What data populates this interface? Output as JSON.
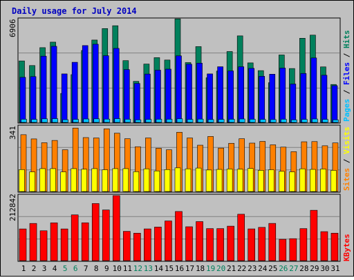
{
  "chart_data": {
    "type": "bar",
    "title": "Daily usage for July 2014",
    "days": [
      "1",
      "2",
      "3",
      "4",
      "5",
      "6",
      "7",
      "8",
      "9",
      "10",
      "11",
      "12",
      "13",
      "14",
      "15",
      "16",
      "17",
      "18",
      "19",
      "20",
      "21",
      "22",
      "23",
      "24",
      "25",
      "26",
      "27",
      "28",
      "29",
      "30",
      "31"
    ],
    "weekend_days": [
      "5",
      "6",
      "12",
      "13",
      "19",
      "20",
      "26",
      "27"
    ],
    "panels": {
      "top": {
        "ymax_label": "6906",
        "ymax": 6906,
        "labels": [
          "Pages",
          "Files",
          "Hits"
        ],
        "series": [
          {
            "name": "Hits",
            "color": "#00805c",
            "values": [
              4120,
              3810,
              5010,
              5380,
              1940,
              3200,
              4820,
              5520,
              6290,
              6480,
              4140,
              2750,
              3910,
              4340,
              4180,
              6940,
              4010,
              5080,
              2990,
              3440,
              4750,
              5800,
              3990,
              3470,
              2660,
              4520,
              3610,
              5640,
              5850,
              3720,
              2540
            ]
          },
          {
            "name": "Files",
            "color": "#0000ff",
            "values": [
              3020,
              3070,
              4440,
              5100,
              3250,
              4030,
              5150,
              5240,
              4470,
              4960,
              3540,
              2610,
              3240,
              3500,
              3570,
              4460,
              3900,
              3970,
              3250,
              3730,
              3450,
              3730,
              3620,
              3090,
              3230,
              3640,
              2570,
              3280,
              4320,
              3160,
              2460
            ]
          },
          {
            "name": "Pages",
            "color": "#00c0ff",
            "values": [
              210,
              200,
              240,
              250,
              180,
              200,
              230,
              240,
              220,
              250,
              210,
              170,
              200,
              210,
              210,
              240,
              200,
              220,
              190,
              200,
              210,
              230,
              210,
              200,
              190,
              210,
              170,
              200,
              230,
              200,
              170
            ]
          }
        ]
      },
      "middle": {
        "ymax_label": "341",
        "ymax": 341,
        "labels": [
          "Sites",
          "Visits"
        ],
        "series": [
          {
            "name": "Visits",
            "color": "#ff8000",
            "values": [
              298,
              276,
              256,
              268,
              219,
              333,
              283,
              281,
              329,
              306,
              277,
              235,
              281,
              227,
              219,
              311,
              281,
              243,
              289,
              228,
              253,
              277,
              254,
              263,
              245,
              233,
              209,
              261,
              262,
              240,
              255
            ]
          },
          {
            "name": "Sites",
            "color": "#ffff00",
            "values": [
              115,
              103,
              120,
              120,
              103,
              120,
              117,
              120,
              114,
              120,
              120,
              104,
              119,
              108,
              115,
              124,
              119,
              123,
              113,
              116,
              118,
              117,
              121,
              111,
              114,
              106,
              103,
              119,
              116,
              118,
              111
            ]
          }
        ]
      },
      "bottom": {
        "ymax_label": "212842",
        "ymax": 212842,
        "labels": [
          "KBytes"
        ],
        "series": [
          {
            "name": "KBytes",
            "color": "#ff0000",
            "values": [
              103900,
              121900,
              97900,
              123900,
              103900,
              150000,
              124000,
              187000,
              166000,
              213000,
              96000,
              90000,
              104000,
              110000,
              130000,
              161000,
              111000,
              128000,
              105000,
              105000,
              113000,
              152000,
              104000,
              109000,
              122000,
              70000,
              72000,
              105000,
              165000,
              95000,
              90000
            ]
          }
        ]
      }
    }
  }
}
